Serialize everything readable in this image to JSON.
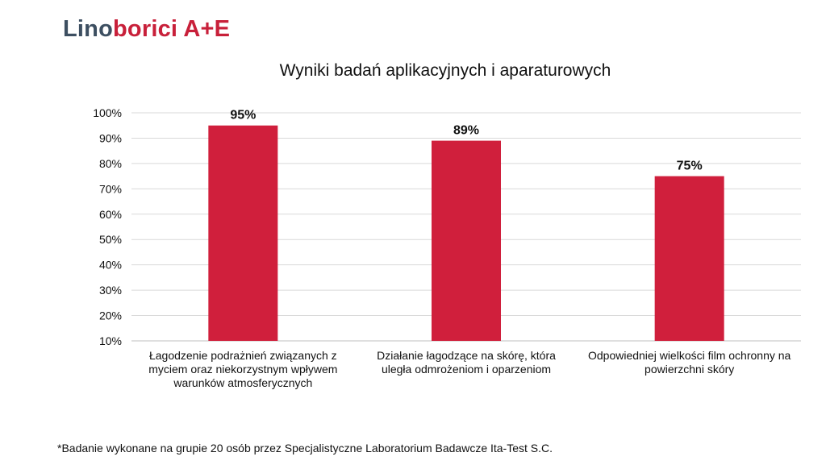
{
  "brand": {
    "part1": "Lino",
    "part2": "borici A+E",
    "color1": "#3d4f61",
    "color2": "#c8203a"
  },
  "footnote": "*Badanie wykonane na grupie 20 osób przez Specjalistyczne Laboratorium Badawcze Ita-Test S.C.",
  "chart_data": {
    "type": "bar",
    "title": "Wyniki badań aplikacyjnych i aparaturowych",
    "categories": [
      [
        "Łagodzenie podrażnień związanych z",
        "myciem oraz niekorzystnym wpływem",
        "warunków atmosferycznych"
      ],
      [
        "Działanie łagodzące na skórę, która",
        "uległa odmrożeniom i oparzeniom"
      ],
      [
        "Odpowiedniej wielkości film ochronny na",
        "powierzchni skóry"
      ]
    ],
    "values": [
      95,
      89,
      75
    ],
    "data_labels": [
      "95%",
      "89%",
      "75%"
    ],
    "ylim": [
      10,
      100
    ],
    "yticks": [
      "10%",
      "20%",
      "30%",
      "40%",
      "50%",
      "60%",
      "70%",
      "80%",
      "90%",
      "100%"
    ],
    "grid": true,
    "legend": "none",
    "bar_color": "#d01f3c",
    "grid_color": "#d9d9d9"
  }
}
